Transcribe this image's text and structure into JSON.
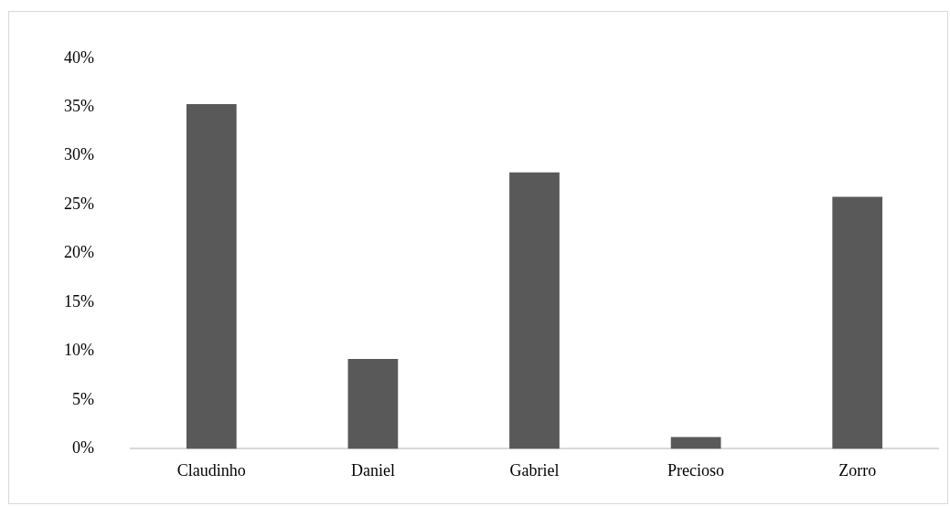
{
  "chart_data": {
    "type": "bar",
    "categories": [
      "Claudinho",
      "Daniel",
      "Gabriel",
      "Precioso",
      "Zorro"
    ],
    "values": [
      35.3,
      9.2,
      28.3,
      1.2,
      25.8
    ],
    "color": "#595959",
    "ylim": [
      0,
      40
    ],
    "yticks": [
      {
        "value": 0,
        "label": "0%"
      },
      {
        "value": 5,
        "label": "5%"
      },
      {
        "value": 10,
        "label": "10%"
      },
      {
        "value": 15,
        "label": "15%"
      },
      {
        "value": 20,
        "label": "20%"
      },
      {
        "value": 25,
        "label": "25%"
      },
      {
        "value": 30,
        "label": "30%"
      },
      {
        "value": 35,
        "label": "35%"
      },
      {
        "value": 40,
        "label": "40%"
      }
    ],
    "grid": false
  }
}
